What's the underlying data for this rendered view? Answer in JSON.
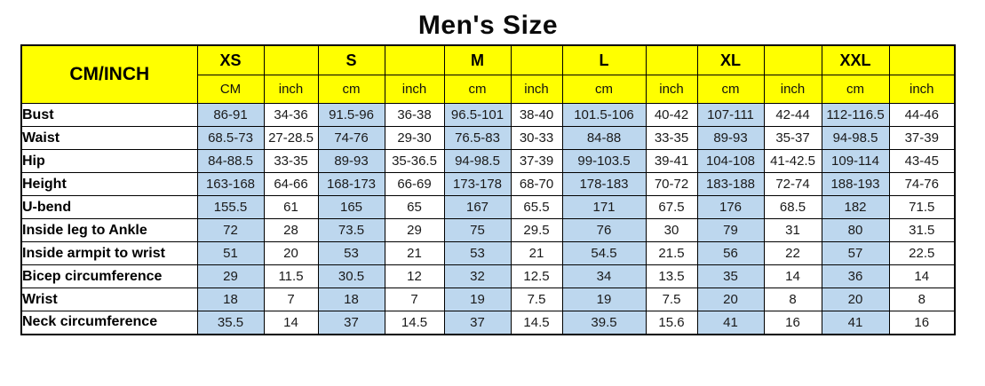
{
  "title": "Men's Size",
  "colors": {
    "header_bg": "#FFFF00",
    "cm_column_bg": "#BDD7EE",
    "inch_column_bg": "#FFFFFF",
    "border": "#000000",
    "text": "#000000"
  },
  "table": {
    "corner_label": "CM/INCH",
    "sizes": [
      {
        "label": "XS",
        "cm_header": "CM",
        "inch_header": "inch"
      },
      {
        "label": "S",
        "cm_header": "cm",
        "inch_header": "inch"
      },
      {
        "label": "M",
        "cm_header": "cm",
        "inch_header": "inch"
      },
      {
        "label": "L",
        "cm_header": "cm",
        "inch_header": "inch"
      },
      {
        "label": "XL",
        "cm_header": "cm",
        "inch_header": "inch"
      },
      {
        "label": "XXL",
        "cm_header": "cm",
        "inch_header": "inch"
      }
    ],
    "rows": [
      {
        "label": "Bust",
        "values": [
          "86-91",
          "34-36",
          "91.5-96",
          "36-38",
          "96.5-101",
          "38-40",
          "101.5-106",
          "40-42",
          "107-111",
          "42-44",
          "112-116.5",
          "44-46"
        ]
      },
      {
        "label": "Waist",
        "values": [
          "68.5-73",
          "27-28.5",
          "74-76",
          "29-30",
          "76.5-83",
          "30-33",
          "84-88",
          "33-35",
          "89-93",
          "35-37",
          "94-98.5",
          "37-39"
        ]
      },
      {
        "label": "Hip",
        "values": [
          "84-88.5",
          "33-35",
          "89-93",
          "35-36.5",
          "94-98.5",
          "37-39",
          "99-103.5",
          "39-41",
          "104-108",
          "41-42.5",
          "109-114",
          "43-45"
        ]
      },
      {
        "label": "Height",
        "values": [
          "163-168",
          "64-66",
          "168-173",
          "66-69",
          "173-178",
          "68-70",
          "178-183",
          "70-72",
          "183-188",
          "72-74",
          "188-193",
          "74-76"
        ]
      },
      {
        "label": "U-bend",
        "values": [
          "155.5",
          "61",
          "165",
          "65",
          "167",
          "65.5",
          "171",
          "67.5",
          "176",
          "68.5",
          "182",
          "71.5"
        ]
      },
      {
        "label": "Inside leg to Ankle",
        "values": [
          "72",
          "28",
          "73.5",
          "29",
          "75",
          "29.5",
          "76",
          "30",
          "79",
          "31",
          "80",
          "31.5"
        ]
      },
      {
        "label": "Inside armpit to wrist",
        "values": [
          "51",
          "20",
          "53",
          "21",
          "53",
          "21",
          "54.5",
          "21.5",
          "56",
          "22",
          "57",
          "22.5"
        ]
      },
      {
        "label": "Bicep circumference",
        "values": [
          "29",
          "11.5",
          "30.5",
          "12",
          "32",
          "12.5",
          "34",
          "13.5",
          "35",
          "14",
          "36",
          "14"
        ]
      },
      {
        "label": "Wrist",
        "values": [
          "18",
          "7",
          "18",
          "7",
          "19",
          "7.5",
          "19",
          "7.5",
          "20",
          "8",
          "20",
          "8"
        ]
      },
      {
        "label": "Neck circumference",
        "values": [
          "35.5",
          "14",
          "37",
          "14.5",
          "37",
          "14.5",
          "39.5",
          "15.6",
          "41",
          "16",
          "41",
          "16"
        ]
      }
    ]
  }
}
